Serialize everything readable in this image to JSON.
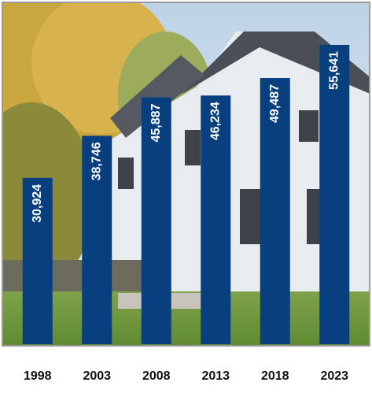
{
  "chart_data": {
    "type": "bar",
    "categories": [
      "1998",
      "2003",
      "2008",
      "2013",
      "2018",
      "2023"
    ],
    "values": [
      30924,
      38746,
      45887,
      46234,
      49487,
      55641
    ],
    "value_labels": [
      "30,924",
      "38,746",
      "45,887",
      "46,234",
      "49,487",
      "55,641"
    ],
    "color": "#083f7e"
  }
}
